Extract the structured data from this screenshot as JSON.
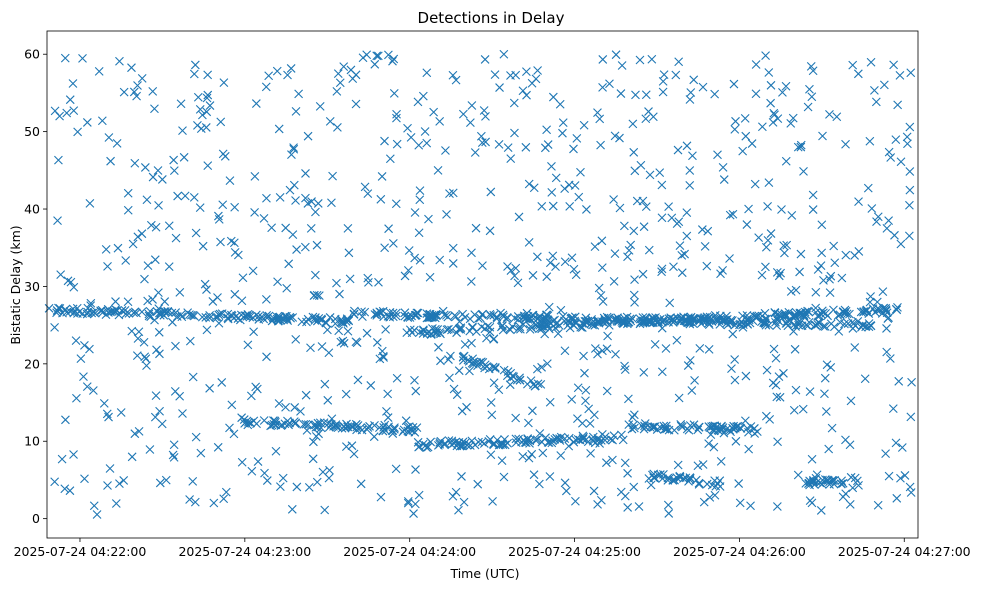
{
  "chart_data": {
    "type": "scatter",
    "title": "Detections in Delay",
    "xlabel": "Time (UTC)",
    "ylabel": "Bistatic Delay (km)",
    "marker": "x",
    "color": "#1f77b4",
    "xlim": [
      "2025-07-24 04:21:48",
      "2025-07-24 04:27:05"
    ],
    "ylim": [
      -2.5,
      63
    ],
    "x_ticks": [
      "2025-07-24 04:22:00",
      "2025-07-24 04:23:00",
      "2025-07-24 04:24:00",
      "2025-07-24 04:25:00",
      "2025-07-24 04:26:00",
      "2025-07-24 04:27:00"
    ],
    "y_ticks": [
      "0",
      "10",
      "20",
      "30",
      "40",
      "50",
      "60"
    ],
    "x_tick_seconds": [
      12,
      72,
      132,
      192,
      252,
      312
    ],
    "y_tick_values": [
      0,
      10,
      20,
      30,
      40,
      50,
      60
    ],
    "x_domain_seconds": [
      0,
      317
    ],
    "y_domain": [
      -2.5,
      63
    ],
    "tracks": [
      {
        "name": "track-upper-1",
        "x_start": 0,
        "x_end": 110,
        "y_start": 27,
        "y_end": 25.5
      },
      {
        "name": "track-upper-2",
        "x_start": 110,
        "x_end": 300,
        "y_start": 26.5,
        "y_end": 25
      },
      {
        "name": "track-upper-3",
        "x_start": 130,
        "x_end": 310,
        "y_start": 24,
        "y_end": 27
      },
      {
        "name": "track-mid-descending",
        "x_start": 150,
        "x_end": 180,
        "y_start": 21,
        "y_end": 17
      },
      {
        "name": "track-lower-1",
        "x_start": 70,
        "x_end": 135,
        "y_start": 12.5,
        "y_end": 11.5
      },
      {
        "name": "track-lower-2",
        "x_start": 135,
        "x_end": 210,
        "y_start": 9.5,
        "y_end": 10.5
      },
      {
        "name": "track-lower-3",
        "x_start": 210,
        "x_end": 260,
        "y_start": 12,
        "y_end": 11.5
      },
      {
        "name": "track-low-2",
        "x_start": 220,
        "x_end": 245,
        "y_start": 5.5,
        "y_end": 4.5
      },
      {
        "name": "track-low-3",
        "x_start": 275,
        "x_end": 295,
        "y_start": 4.5,
        "y_end": 5
      }
    ],
    "noise_points": 900
  }
}
